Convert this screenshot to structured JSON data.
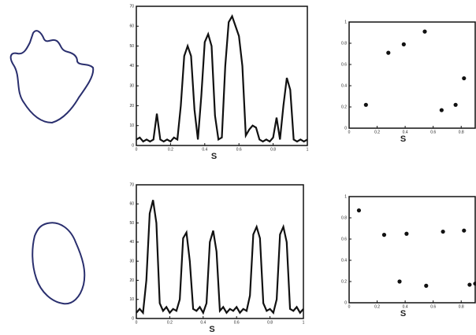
{
  "chart_data": [
    {
      "type": "line",
      "x_label": "S",
      "color": "#111",
      "x": [
        0,
        0.02,
        0.04,
        0.06,
        0.08,
        0.1,
        0.12,
        0.14,
        0.16,
        0.18,
        0.2,
        0.22,
        0.24,
        0.26,
        0.28,
        0.3,
        0.32,
        0.34,
        0.36,
        0.38,
        0.4,
        0.42,
        0.44,
        0.46,
        0.48,
        0.5,
        0.52,
        0.54,
        0.56,
        0.58,
        0.6,
        0.62,
        0.64,
        0.66,
        0.68,
        0.7,
        0.72,
        0.74,
        0.76,
        0.78,
        0.8,
        0.82,
        0.84,
        0.86,
        0.88,
        0.9,
        0.92,
        0.94,
        0.96,
        0.98,
        1
      ],
      "values": [
        3,
        4,
        2,
        3,
        2,
        3,
        16,
        3,
        2,
        3,
        2,
        4,
        3,
        20,
        45,
        50,
        45,
        18,
        3,
        25,
        52,
        56,
        50,
        15,
        3,
        4,
        40,
        62,
        65,
        60,
        55,
        40,
        5,
        8,
        10,
        9,
        3,
        2,
        3,
        2,
        4,
        14,
        3,
        20,
        34,
        28,
        3,
        2,
        3,
        2,
        3
      ],
      "xlim": [
        0,
        1
      ],
      "xticks": [
        0,
        0.2,
        0.4,
        0.6,
        0.8,
        1
      ],
      "ylim": [
        0,
        70
      ],
      "yticks": [
        0,
        10,
        20,
        30,
        40,
        50,
        60,
        70
      ]
    },
    {
      "type": "line",
      "x_label": "S",
      "color": "#111",
      "x": [
        0,
        0.02,
        0.04,
        0.06,
        0.08,
        0.1,
        0.12,
        0.14,
        0.16,
        0.18,
        0.2,
        0.22,
        0.24,
        0.26,
        0.28,
        0.3,
        0.32,
        0.34,
        0.36,
        0.38,
        0.4,
        0.42,
        0.44,
        0.46,
        0.48,
        0.5,
        0.52,
        0.54,
        0.56,
        0.58,
        0.6,
        0.62,
        0.64,
        0.66,
        0.68,
        0.7,
        0.72,
        0.74,
        0.76,
        0.78,
        0.8,
        0.82,
        0.84,
        0.86,
        0.88,
        0.9,
        0.92,
        0.94,
        0.96,
        0.98,
        1
      ],
      "values": [
        3,
        5,
        3,
        20,
        55,
        62,
        50,
        8,
        4,
        6,
        3,
        5,
        4,
        10,
        42,
        45,
        30,
        5,
        4,
        6,
        3,
        8,
        40,
        46,
        35,
        4,
        6,
        3,
        5,
        4,
        6,
        3,
        5,
        4,
        12,
        44,
        48,
        42,
        8,
        4,
        5,
        3,
        10,
        44,
        48,
        40,
        5,
        4,
        6,
        3,
        5
      ],
      "xlim": [
        0,
        1
      ],
      "xticks": [
        0,
        0.2,
        0.4,
        0.6,
        0.8,
        1
      ],
      "ylim": [
        0,
        70
      ],
      "yticks": [
        0,
        10,
        20,
        30,
        40,
        50,
        60,
        70
      ]
    },
    {
      "type": "scatter",
      "x_label": "S",
      "color": "#111",
      "x": [
        0.12,
        0.28,
        0.39,
        0.54,
        0.66,
        0.76,
        0.82
      ],
      "values": [
        0.22,
        0.71,
        0.79,
        0.91,
        0.17,
        0.22,
        0.47
      ],
      "xlim": [
        0,
        0.9
      ],
      "xticks": [
        0,
        0.2,
        0.4,
        0.6,
        0.8
      ],
      "ylim": [
        0,
        1
      ],
      "yticks": [
        0,
        0.2,
        0.4,
        0.6,
        0.8,
        1
      ]
    },
    {
      "type": "scatter",
      "x_label": "S",
      "color": "#111",
      "x": [
        0.07,
        0.25,
        0.41,
        0.36,
        0.55,
        0.67,
        0.82,
        0.86,
        0.9
      ],
      "values": [
        0.87,
        0.64,
        0.65,
        0.2,
        0.16,
        0.67,
        0.68,
        0.17,
        0.18
      ],
      "xlim": [
        0,
        0.9
      ],
      "xticks": [
        0,
        0.2,
        0.4,
        0.6,
        0.8
      ],
      "ylim": [
        0,
        1
      ],
      "yticks": [
        0,
        0.2,
        0.4,
        0.6,
        0.8,
        1
      ]
    }
  ]
}
